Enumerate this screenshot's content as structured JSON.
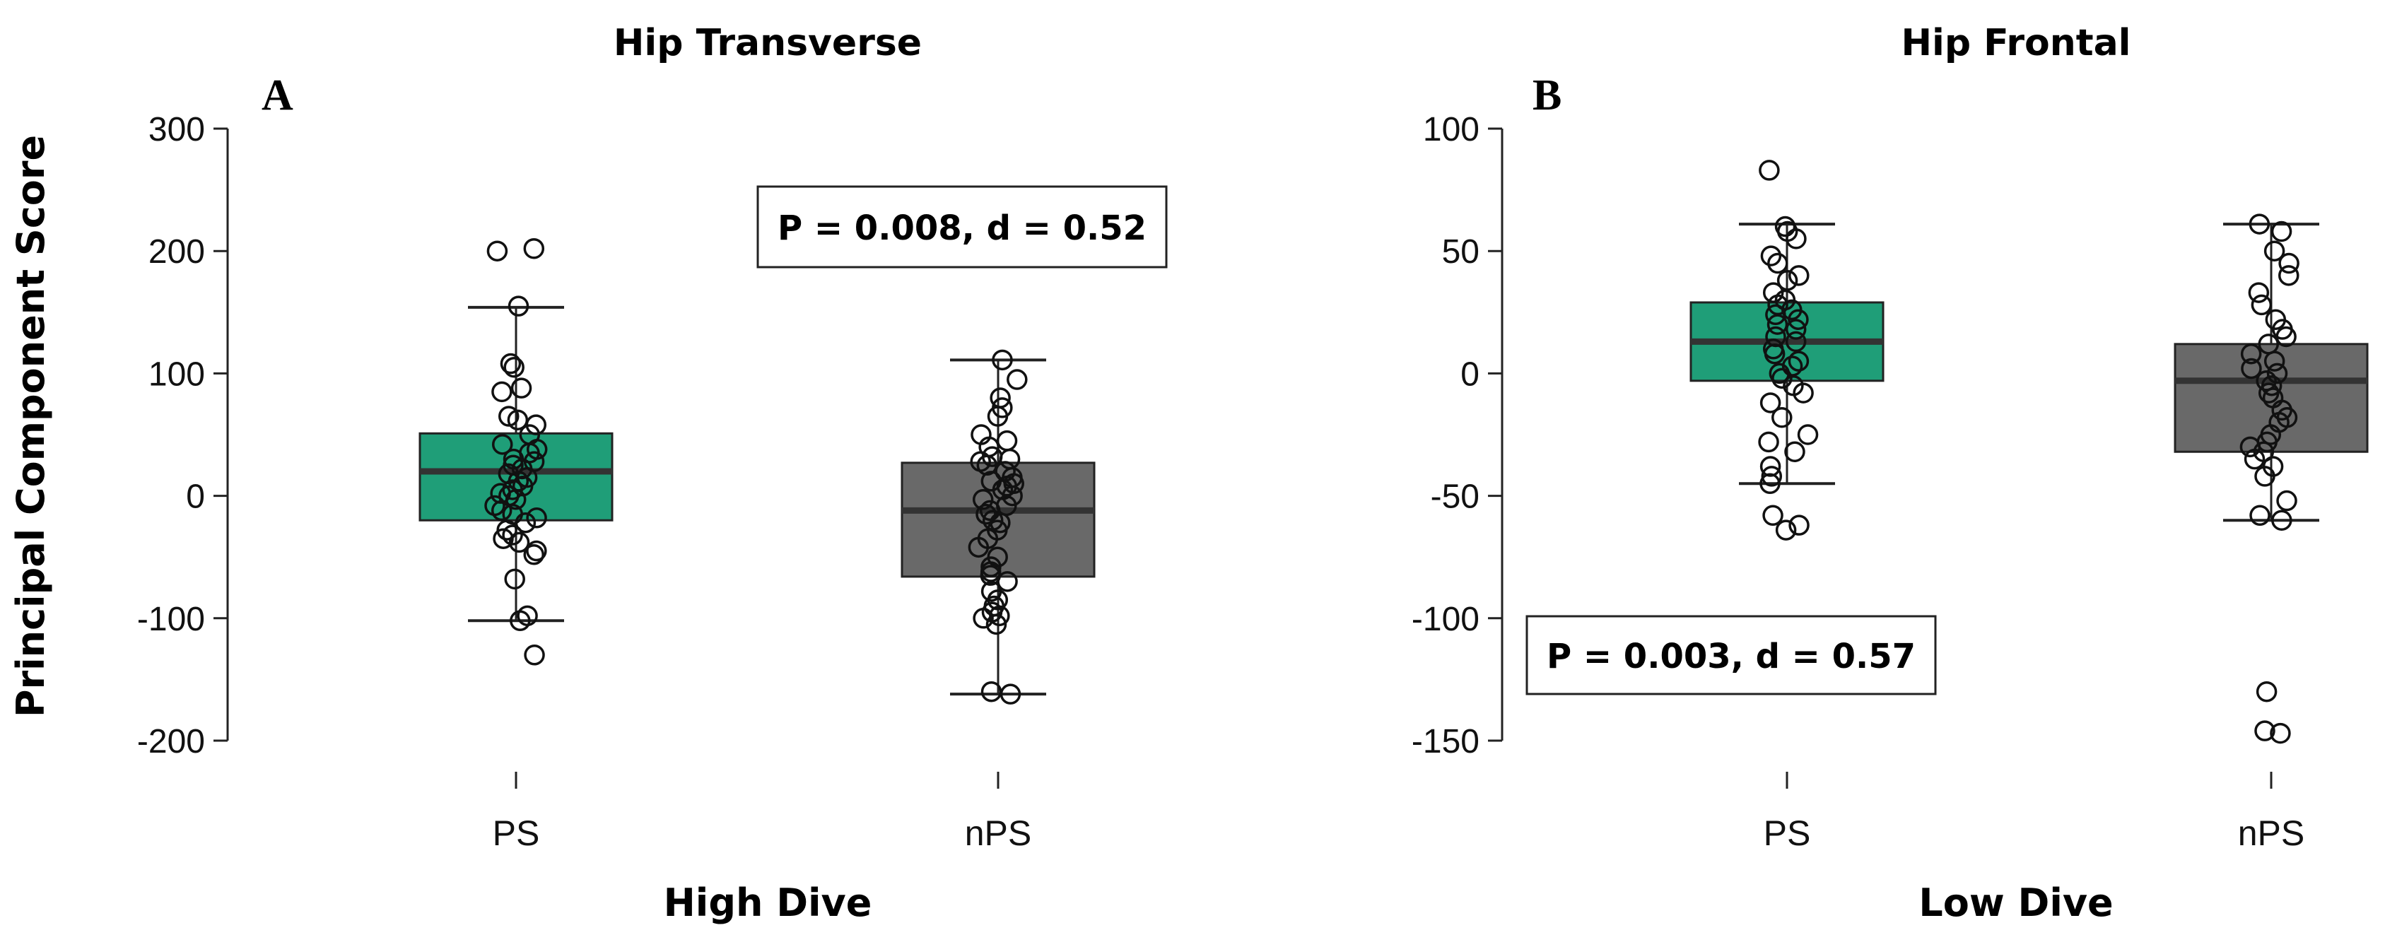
{
  "figure": {
    "ylabel": "Principal Component Score"
  },
  "chart_data": [
    {
      "type": "box",
      "panel_label": "A",
      "title": "Hip Transverse",
      "xlabel": "High Dive",
      "ylabel": "Principal Component Score",
      "ylim": [
        -200,
        300
      ],
      "yticks": [
        -200,
        -100,
        0,
        100,
        200,
        300
      ],
      "categories": [
        "PS",
        "nPS"
      ],
      "grid": false,
      "annotation": "P = 0.008, d = 0.52",
      "boxes": [
        {
          "category": "PS",
          "color": "#1f9e78",
          "whisker_low": -102,
          "q1": -20,
          "median": 20,
          "q3": 51,
          "whisker_high": 154,
          "points": [
            202,
            200,
            155,
            108,
            105,
            88,
            85,
            65,
            62,
            58,
            50,
            42,
            38,
            35,
            30,
            28,
            25,
            22,
            18,
            15,
            12,
            8,
            5,
            2,
            0,
            -3,
            -8,
            -12,
            -15,
            -18,
            -22,
            -28,
            -32,
            -35,
            -38,
            -45,
            -48,
            -68,
            -98,
            -102,
            -130
          ]
        },
        {
          "category": "nPS",
          "color": "#696969",
          "whisker_low": -162,
          "q1": -66,
          "median": -12,
          "q3": 27,
          "whisker_high": 111,
          "points": [
            111,
            95,
            80,
            72,
            65,
            50,
            45,
            40,
            32,
            30,
            28,
            25,
            20,
            15,
            12,
            10,
            8,
            5,
            0,
            -3,
            -8,
            -12,
            -15,
            -20,
            -22,
            -28,
            -35,
            -42,
            -50,
            -58,
            -62,
            -65,
            -70,
            -78,
            -85,
            -90,
            -95,
            -98,
            -100,
            -105,
            -160,
            -162
          ]
        }
      ]
    },
    {
      "type": "box",
      "panel_label": "B",
      "title": "Hip Frontal",
      "xlabel": "Low Dive",
      "ylim": [
        -150,
        100
      ],
      "yticks": [
        -150,
        -100,
        -50,
        0,
        50,
        100
      ],
      "categories": [
        "PS",
        "nPS"
      ],
      "grid": false,
      "annotation": "P = 0.003, d = 0.57",
      "boxes": [
        {
          "category": "PS",
          "color": "#1f9e78",
          "whisker_low": -45,
          "q1": -3,
          "median": 13,
          "q3": 29,
          "whisker_high": 61,
          "points": [
            83,
            60,
            58,
            55,
            48,
            45,
            40,
            38,
            33,
            30,
            28,
            26,
            24,
            22,
            20,
            18,
            15,
            13,
            10,
            8,
            5,
            3,
            0,
            -2,
            -5,
            -8,
            -12,
            -18,
            -25,
            -28,
            -32,
            -38,
            -42,
            -45,
            -58,
            -62,
            -64
          ]
        },
        {
          "category": "nPS",
          "color": "#696969",
          "whisker_low": -60,
          "q1": -32,
          "median": -3,
          "q3": 12,
          "whisker_high": 61,
          "points": [
            61,
            58,
            50,
            45,
            40,
            33,
            28,
            22,
            18,
            15,
            12,
            8,
            5,
            2,
            0,
            -3,
            -5,
            -8,
            -10,
            -15,
            -18,
            -20,
            -25,
            -28,
            -30,
            -32,
            -35,
            -38,
            -42,
            -52,
            -58,
            -60,
            -130,
            -146,
            -147
          ]
        }
      ]
    }
  ]
}
